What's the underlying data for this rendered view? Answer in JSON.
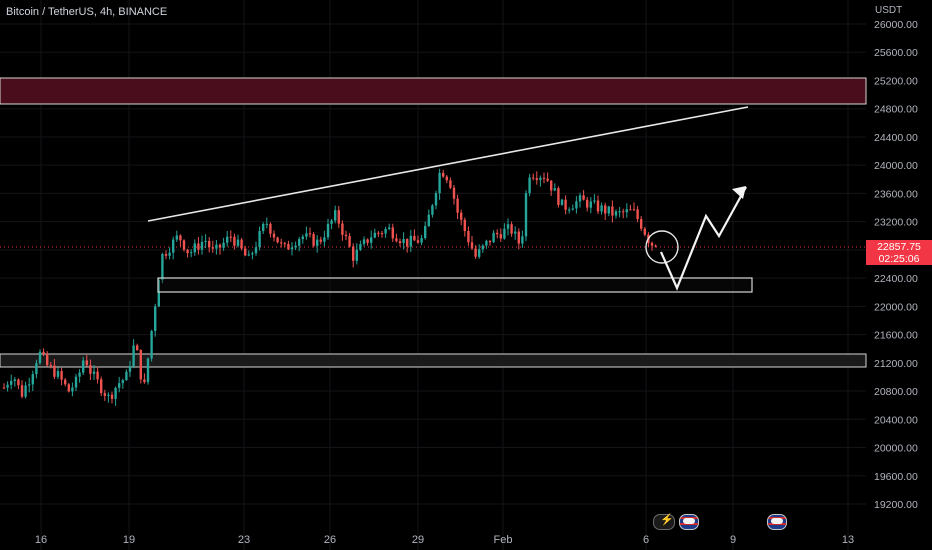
{
  "symbol": "Bitcoin / TetherUS, 4h, BINANCE",
  "currency": "USDT",
  "price_tag": {
    "price": "22857.75",
    "countdown": "02:25:06",
    "color": "#f23645"
  },
  "colors": {
    "up": "#26a69a",
    "down": "#ef5350",
    "resistance_zone": "#4a0d1c",
    "background": "#000000"
  },
  "chart_data": {
    "type": "candlestick",
    "title": "Bitcoin / TetherUS, 4h, BINANCE",
    "ylabel": "USDT",
    "ylim": [
      19000,
      26200
    ],
    "y_ticks": [
      19200,
      19600,
      20000,
      20400,
      20800,
      21200,
      21600,
      22000,
      22400,
      22800,
      23200,
      23600,
      24000,
      24400,
      24800,
      25200,
      25600,
      26000
    ],
    "x_ticks": [
      "16",
      "19",
      "23",
      "26",
      "29",
      "Feb",
      "6",
      "9",
      "13"
    ],
    "last_price": 22857.75,
    "candle_points": [
      [
        0,
        20850
      ],
      [
        0.5,
        21050
      ],
      [
        1.0,
        20750
      ],
      [
        1.5,
        21000
      ],
      [
        2.0,
        21350
      ],
      [
        2.5,
        21150
      ],
      [
        3.0,
        21050
      ],
      [
        3.7,
        20800
      ],
      [
        4.2,
        20950
      ],
      [
        4.6,
        21300
      ],
      [
        5.0,
        21050
      ],
      [
        6.0,
        20700
      ],
      [
        6.5,
        20900
      ],
      [
        7.0,
        21000
      ],
      [
        7.5,
        21500
      ],
      [
        8.0,
        20800
      ],
      [
        9.0,
        22700
      ],
      [
        10.0,
        23000
      ],
      [
        10.6,
        22750
      ],
      [
        11.5,
        22950
      ],
      [
        12.0,
        22750
      ],
      [
        13.0,
        23000
      ],
      [
        14.0,
        22650
      ],
      [
        15.0,
        23200
      ],
      [
        16.0,
        22800
      ],
      [
        17.0,
        23000
      ],
      [
        18.0,
        22900
      ],
      [
        19.0,
        23300
      ],
      [
        20.0,
        22700
      ],
      [
        21.0,
        23000
      ],
      [
        22.0,
        23100
      ],
      [
        23.0,
        22900
      ],
      [
        24.0,
        22950
      ],
      [
        25.0,
        23950
      ],
      [
        25.5,
        23800
      ],
      [
        26.0,
        23300
      ],
      [
        27.0,
        22700
      ],
      [
        28.0,
        23000
      ],
      [
        29.0,
        23100
      ],
      [
        29.6,
        22850
      ],
      [
        30.0,
        23900
      ],
      [
        31.0,
        23850
      ],
      [
        32.0,
        23400
      ],
      [
        33.0,
        23500
      ],
      [
        34.0,
        23400
      ],
      [
        35.0,
        23300
      ],
      [
        36.0,
        23350
      ],
      [
        36.5,
        23150
      ],
      [
        37.0,
        22900
      ],
      [
        37.3,
        22860
      ]
    ],
    "drawings": {
      "resistance_zone": [
        24900,
        25250
      ],
      "support_zone": [
        22260,
        22450
      ],
      "lower_zone": [
        21200,
        21380
      ],
      "ascending_trendline": [
        [
          "Jan 20",
          23250
        ],
        [
          "Feb 9",
          24850
        ]
      ],
      "projection_path": [
        22870,
        22320,
        23380,
        23010,
        23750
      ],
      "marked_price": 22857.75
    }
  }
}
